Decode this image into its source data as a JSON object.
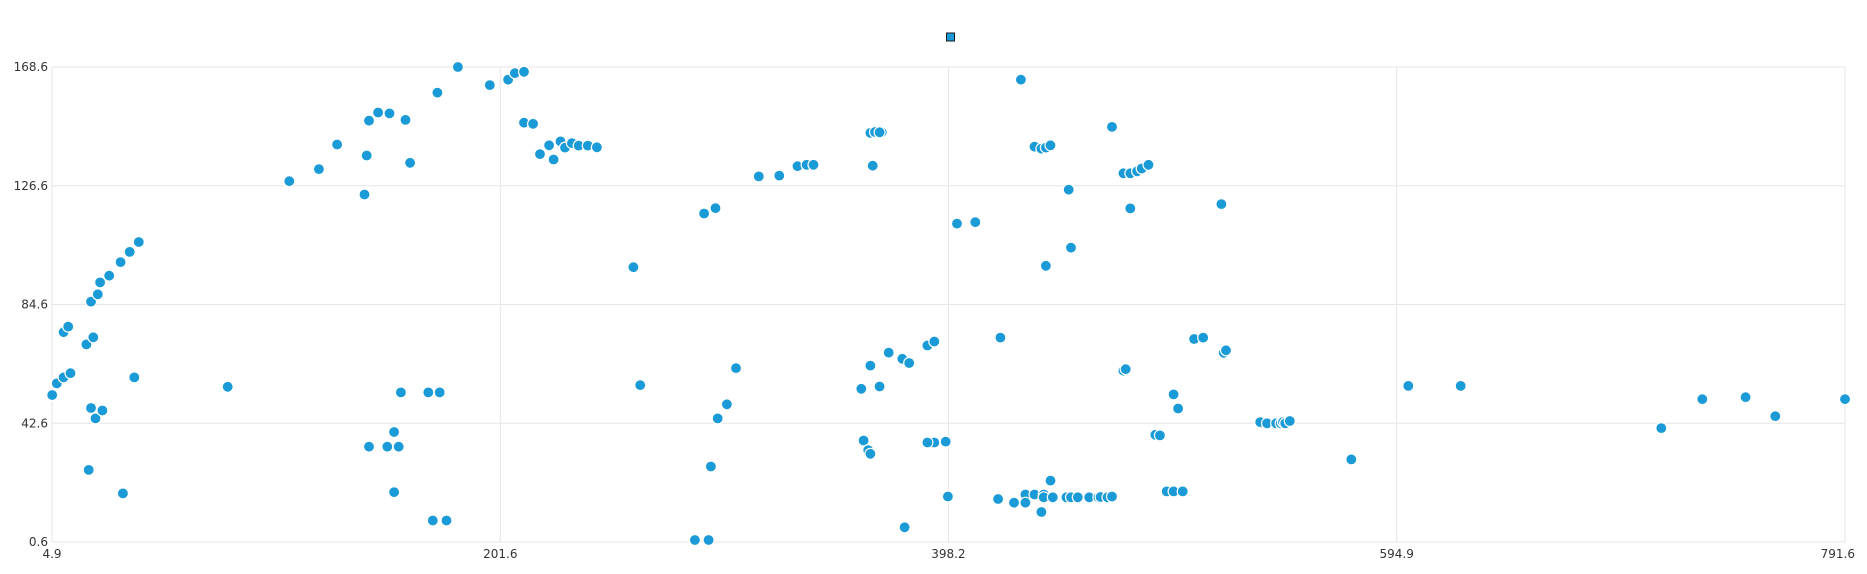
{
  "chart_data": {
    "type": "scatter",
    "title": "",
    "xlabel": "",
    "ylabel": "",
    "xlim": [
      4.9,
      791.6
    ],
    "ylim": [
      0.6,
      168.6
    ],
    "x_ticks": [
      "4.9",
      "201.6",
      "398.2",
      "594.9",
      "791.6"
    ],
    "y_ticks": [
      "0.6",
      "42.6",
      "84.6",
      "126.6",
      "168.6"
    ],
    "grid": true,
    "legend": "top-center",
    "colors": {
      "point": "#1a9ad6",
      "point_stroke": "#ffffff",
      "grid": "#e6e6e6",
      "axis_text": "#333333",
      "legend_stroke": "#1a1a1a"
    },
    "series": [
      {
        "name": "",
        "points": [
          [
            5,
            52.6
          ],
          [
            7,
            56.7
          ],
          [
            10,
            58.8
          ],
          [
            13,
            60.3
          ],
          [
            10,
            74.8
          ],
          [
            12,
            76.8
          ],
          [
            22,
            85.6
          ],
          [
            20,
            70.5
          ],
          [
            23,
            73
          ],
          [
            25,
            88.2
          ],
          [
            26,
            92.4
          ],
          [
            30,
            94.8
          ],
          [
            35,
            99.6
          ],
          [
            39,
            103.2
          ],
          [
            43,
            106.7
          ],
          [
            41,
            58.8
          ],
          [
            22,
            48
          ],
          [
            24,
            44.3
          ],
          [
            27,
            47.1
          ],
          [
            21,
            26.1
          ],
          [
            36,
            17.8
          ],
          [
            82,
            55.5
          ],
          [
            109,
            128.2
          ],
          [
            122,
            132.5
          ],
          [
            130,
            141.2
          ],
          [
            142,
            123.5
          ],
          [
            143,
            137.3
          ],
          [
            144,
            149.6
          ],
          [
            148,
            152.5
          ],
          [
            153,
            152.2
          ],
          [
            160,
            149.9
          ],
          [
            162,
            134.7
          ],
          [
            174,
            159.5
          ],
          [
            183,
            168.6
          ],
          [
            197,
            162.2
          ],
          [
            205,
            164.1
          ],
          [
            208,
            166.4
          ],
          [
            212,
            166.9
          ],
          [
            212,
            148.9
          ],
          [
            216,
            148.5
          ],
          [
            219,
            137.8
          ],
          [
            223,
            140.9
          ],
          [
            225,
            135.9
          ],
          [
            228,
            142.3
          ],
          [
            230,
            140.1
          ],
          [
            233,
            141.7
          ],
          [
            236,
            140.8
          ],
          [
            240,
            140.8
          ],
          [
            244,
            140
          ],
          [
            144,
            34.3
          ],
          [
            152,
            34.3
          ],
          [
            155,
            39.5
          ],
          [
            157,
            34.3
          ],
          [
            155,
            18.2
          ],
          [
            158,
            53.5
          ],
          [
            170,
            53.5
          ],
          [
            175,
            53.5
          ],
          [
            172,
            8.2
          ],
          [
            178,
            8.2
          ],
          [
            244,
            140.2
          ],
          [
            260,
            97.8
          ],
          [
            263,
            56.1
          ],
          [
            287,
            1.3
          ],
          [
            293,
            1.3
          ],
          [
            291,
            116.8
          ],
          [
            296,
            118.7
          ],
          [
            294,
            27.3
          ],
          [
            297,
            44.3
          ],
          [
            301,
            49.3
          ],
          [
            305,
            62.1
          ],
          [
            315,
            129.9
          ],
          [
            324,
            130.2
          ],
          [
            332,
            133.5
          ],
          [
            336,
            134
          ],
          [
            339,
            134
          ],
          [
            360,
            54.8
          ],
          [
            361,
            36.5
          ],
          [
            363,
            33.1
          ],
          [
            364,
            31.8
          ],
          [
            364,
            63
          ],
          [
            365,
            133.7
          ],
          [
            366,
            145.5
          ],
          [
            369,
            145.5
          ],
          [
            368,
            55.6
          ],
          [
            372,
            67.6
          ],
          [
            378,
            65.4
          ],
          [
            381,
            63.9
          ],
          [
            379,
            5.8
          ],
          [
            389,
            70.1
          ],
          [
            392,
            71.5
          ],
          [
            392,
            35.8
          ],
          [
            397,
            36.1
          ],
          [
            364,
            145.3
          ],
          [
            389,
            35.8
          ],
          [
            366,
            145.6
          ],
          [
            368,
            145.5
          ]
        ]
      },
      {
        "name": "",
        "points": [
          [
            421,
            72.9
          ],
          [
            430,
            164.1
          ],
          [
            432,
            17.4
          ],
          [
            436,
            17.4
          ],
          [
            436,
            140.4
          ],
          [
            439,
            139.7
          ],
          [
            441,
            140.1
          ],
          [
            443,
            140.9
          ],
          [
            439,
            11.2
          ],
          [
            441,
            98.3
          ],
          [
            443,
            22.3
          ],
          [
            440,
            17.4
          ],
          [
            451,
            125.2
          ],
          [
            452,
            104.7
          ],
          [
            398,
            16.7
          ],
          [
            402,
            113.2
          ],
          [
            410,
            113.7
          ],
          [
            420,
            15.8
          ],
          [
            427,
            14.5
          ],
          [
            432,
            14.5
          ],
          [
            440,
            16.4
          ],
          [
            444,
            16.4
          ],
          [
            450,
            16.4
          ],
          [
            452,
            16.4
          ],
          [
            455,
            16.4
          ],
          [
            460,
            16.4
          ],
          [
            465,
            16.7
          ],
          [
            470,
            147.4
          ],
          [
            475,
            131
          ],
          [
            478,
            131
          ],
          [
            481,
            131.7
          ],
          [
            483,
            132.7
          ],
          [
            486,
            134
          ],
          [
            475,
            61.2
          ],
          [
            476,
            61.7
          ],
          [
            478,
            118.6
          ],
          [
            489,
            38.5
          ],
          [
            491,
            38.3
          ],
          [
            494,
            18.5
          ],
          [
            497,
            18.5
          ],
          [
            501,
            18.5
          ],
          [
            497,
            52.8
          ],
          [
            499,
            47.8
          ],
          [
            506,
            72.4
          ],
          [
            510,
            72.9
          ],
          [
            519,
            67.5
          ],
          [
            520,
            68.4
          ],
          [
            518,
            120.1
          ],
          [
            535,
            43
          ],
          [
            538,
            42.6
          ],
          [
            542,
            42.6
          ],
          [
            544,
            42.6
          ],
          [
            545,
            43
          ],
          [
            546,
            42.6
          ],
          [
            548,
            43.4
          ],
          [
            464,
            16.4
          ],
          [
            465,
            16.5
          ],
          [
            468,
            16.4
          ],
          [
            470,
            16.7
          ],
          [
            575,
            29.8
          ],
          [
            600,
            55.8
          ],
          [
            623,
            55.8
          ],
          [
            711,
            40.9
          ],
          [
            729,
            51.1
          ],
          [
            748,
            51.8
          ],
          [
            761,
            45.1
          ],
          [
            791.6,
            51.1
          ]
        ]
      }
    ]
  }
}
